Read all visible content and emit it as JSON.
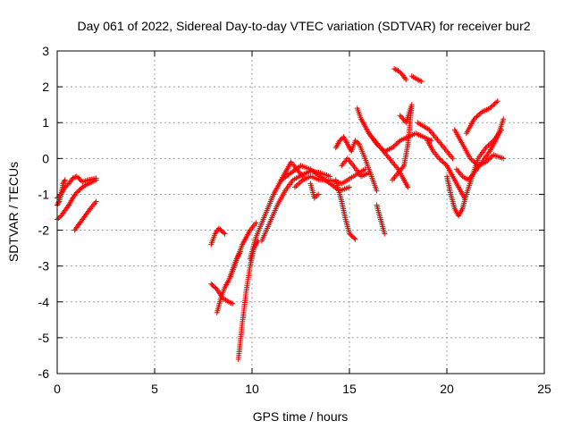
{
  "chart_data": {
    "type": "scatter",
    "title": "Day 061 of 2022, Sidereal Day-to-day VTEC variation (SDTVAR) for receiver bur2",
    "xlabel": "GPS time / hours",
    "ylabel": "SDTVAR / TECUs",
    "xlim": [
      0,
      25
    ],
    "ylim": [
      -6,
      3
    ],
    "xticks": [
      0,
      5,
      10,
      15,
      20,
      25
    ],
    "yticks": [
      -6,
      -5,
      -4,
      -3,
      -2,
      -1,
      0,
      1,
      2,
      3
    ],
    "grid": true,
    "marker": "+",
    "color": "#ff0000",
    "series": [
      {
        "values_note": "",
        "segments": [
          [
            [
              0.0,
              -1.1
            ],
            [
              0.2,
              -1.0
            ],
            [
              0.4,
              -0.8
            ],
            [
              0.6,
              -0.7
            ],
            [
              0.8,
              -0.55
            ],
            [
              1.0,
              -0.5
            ],
            [
              1.3,
              -0.65
            ],
            [
              1.6,
              -0.6
            ],
            [
              2.0,
              -0.55
            ]
          ],
          [
            [
              0.0,
              -1.7
            ],
            [
              0.2,
              -1.6
            ],
            [
              0.4,
              -1.45
            ],
            [
              0.6,
              -1.3
            ],
            [
              0.8,
              -1.1
            ],
            [
              1.0,
              -0.95
            ],
            [
              1.3,
              -0.8
            ],
            [
              1.6,
              -0.7
            ],
            [
              2.0,
              -0.6
            ]
          ],
          [
            [
              0.0,
              -1.3
            ],
            [
              0.1,
              -1.2
            ],
            [
              0.2,
              -1.0
            ],
            [
              0.3,
              -0.7
            ],
            [
              0.4,
              -0.6
            ]
          ],
          [
            [
              0.9,
              -2.0
            ],
            [
              1.1,
              -1.85
            ],
            [
              1.3,
              -1.7
            ],
            [
              1.5,
              -1.55
            ],
            [
              1.7,
              -1.4
            ],
            [
              2.0,
              -1.2
            ]
          ],
          [
            [
              7.9,
              -2.4
            ],
            [
              8.1,
              -2.1
            ],
            [
              8.3,
              -1.95
            ],
            [
              8.6,
              -2.1
            ]
          ],
          [
            [
              7.9,
              -3.5
            ],
            [
              8.2,
              -3.65
            ],
            [
              8.5,
              -3.9
            ],
            [
              8.8,
              -4.0
            ],
            [
              9.0,
              -4.05
            ]
          ],
          [
            [
              8.2,
              -4.3
            ],
            [
              8.4,
              -3.9
            ],
            [
              8.6,
              -3.6
            ],
            [
              8.8,
              -3.4
            ],
            [
              9.0,
              -3.1
            ],
            [
              9.2,
              -2.8
            ],
            [
              9.4,
              -2.6
            ]
          ],
          [
            [
              8.9,
              -3.3
            ],
            [
              9.1,
              -3.0
            ],
            [
              9.3,
              -2.7
            ],
            [
              9.5,
              -2.4
            ],
            [
              9.7,
              -2.2
            ],
            [
              9.9,
              -2.0
            ],
            [
              10.2,
              -1.8
            ]
          ],
          [
            [
              9.3,
              -5.6
            ],
            [
              9.5,
              -4.6
            ],
            [
              9.7,
              -3.7
            ],
            [
              9.9,
              -3.0
            ],
            [
              10.1,
              -2.5
            ],
            [
              10.3,
              -2.3
            ]
          ],
          [
            [
              9.9,
              -2.8
            ],
            [
              10.2,
              -2.2
            ],
            [
              10.5,
              -1.8
            ],
            [
              10.8,
              -1.4
            ],
            [
              11.1,
              -1.0
            ],
            [
              11.4,
              -0.7
            ],
            [
              11.7,
              -0.4
            ],
            [
              12.0,
              -0.1
            ],
            [
              12.3,
              -0.3
            ],
            [
              12.6,
              -0.5
            ]
          ],
          [
            [
              10.5,
              -2.3
            ],
            [
              10.9,
              -1.8
            ],
            [
              11.3,
              -1.3
            ],
            [
              11.7,
              -0.9
            ],
            [
              12.1,
              -0.6
            ],
            [
              12.6,
              -0.45
            ],
            [
              13.0,
              -0.35
            ],
            [
              13.5,
              -0.4
            ],
            [
              14.0,
              -0.5
            ]
          ],
          [
            [
              11.5,
              -0.6
            ],
            [
              12.0,
              -0.4
            ],
            [
              12.5,
              -0.2
            ],
            [
              13.0,
              -0.3
            ],
            [
              13.5,
              -0.5
            ],
            [
              14.0,
              -0.7
            ],
            [
              14.5,
              -0.9
            ],
            [
              15.0,
              -0.8
            ]
          ],
          [
            [
              12.2,
              -0.8
            ],
            [
              12.6,
              -0.6
            ],
            [
              13.0,
              -0.5
            ],
            [
              13.5,
              -0.6
            ],
            [
              14.0,
              -0.6
            ],
            [
              14.6,
              -0.7
            ],
            [
              15.2,
              -0.5
            ],
            [
              15.8,
              -0.3
            ]
          ],
          [
            [
              13.0,
              -0.7
            ],
            [
              13.2,
              -1.1
            ],
            [
              13.4,
              -1.0
            ]
          ],
          [
            [
              14.3,
              0.3
            ],
            [
              14.5,
              0.5
            ],
            [
              14.7,
              0.6
            ],
            [
              14.9,
              0.4
            ],
            [
              15.1,
              0.2
            ],
            [
              15.3,
              0.5
            ],
            [
              15.5,
              0.4
            ],
            [
              15.8,
              0.0
            ],
            [
              16.0,
              -0.3
            ],
            [
              16.2,
              -0.6
            ],
            [
              16.4,
              -0.9
            ]
          ],
          [
            [
              14.3,
              -0.6
            ],
            [
              14.6,
              -1.2
            ],
            [
              14.8,
              -1.7
            ],
            [
              15.0,
              -2.1
            ],
            [
              15.3,
              -2.25
            ]
          ],
          [
            [
              14.6,
              -0.2
            ],
            [
              14.9,
              0.0
            ],
            [
              15.2,
              -0.2
            ],
            [
              15.6,
              -0.5
            ],
            [
              16.0,
              -0.4
            ]
          ],
          [
            [
              15.4,
              1.4
            ],
            [
              15.6,
              1.1
            ],
            [
              15.8,
              0.9
            ],
            [
              16.0,
              0.7
            ],
            [
              16.3,
              0.5
            ],
            [
              16.6,
              0.3
            ],
            [
              16.9,
              0.1
            ],
            [
              17.2,
              -0.1
            ],
            [
              17.5,
              -0.3
            ],
            [
              17.8,
              -0.6
            ],
            [
              18.0,
              -0.8
            ]
          ],
          [
            [
              16.4,
              -1.3
            ],
            [
              16.6,
              -1.7
            ],
            [
              16.8,
              -2.1
            ]
          ],
          [
            [
              16.0,
              0.7
            ],
            [
              16.4,
              0.4
            ],
            [
              16.8,
              0.2
            ],
            [
              17.2,
              0.3
            ],
            [
              17.6,
              0.5
            ],
            [
              18.0,
              0.6
            ],
            [
              18.4,
              0.7
            ],
            [
              18.8,
              0.6
            ],
            [
              19.2,
              0.5
            ]
          ],
          [
            [
              17.3,
              2.5
            ],
            [
              17.5,
              2.45
            ],
            [
              17.7,
              2.35
            ],
            [
              17.9,
              2.2
            ]
          ],
          [
            [
              18.2,
              2.3
            ],
            [
              18.5,
              2.2
            ],
            [
              18.7,
              2.15
            ]
          ],
          [
            [
              17.6,
              1.2
            ],
            [
              17.9,
              1.0
            ],
            [
              18.2,
              1.5
            ],
            [
              18.0,
              0.4
            ],
            [
              17.8,
              -0.2
            ],
            [
              17.5,
              -0.4
            ],
            [
              17.2,
              -0.6
            ]
          ],
          [
            [
              18.5,
              1.0
            ],
            [
              18.8,
              0.9
            ],
            [
              19.1,
              0.8
            ],
            [
              19.4,
              0.6
            ],
            [
              19.7,
              0.4
            ],
            [
              20.0,
              0.2
            ],
            [
              20.3,
              0.0
            ]
          ],
          [
            [
              19.0,
              0.5
            ],
            [
              19.3,
              0.2
            ],
            [
              19.6,
              0.0
            ],
            [
              20.0,
              -0.2
            ],
            [
              20.3,
              -0.5
            ],
            [
              20.6,
              -0.8
            ],
            [
              20.9,
              -1.1
            ]
          ],
          [
            [
              20.0,
              -0.5
            ],
            [
              20.2,
              -1.0
            ],
            [
              20.4,
              -1.4
            ],
            [
              20.6,
              -1.6
            ],
            [
              20.8,
              -1.4
            ],
            [
              21.0,
              -1.0
            ],
            [
              21.3,
              -0.5
            ],
            [
              21.6,
              0.0
            ],
            [
              22.0,
              0.3
            ],
            [
              22.4,
              0.5
            ],
            [
              22.8,
              0.8
            ]
          ],
          [
            [
              20.5,
              -0.3
            ],
            [
              20.8,
              -0.5
            ],
            [
              21.1,
              -0.6
            ],
            [
              21.4,
              -0.4
            ],
            [
              21.8,
              -0.1
            ],
            [
              22.2,
              0.2
            ],
            [
              22.6,
              0.6
            ],
            [
              22.9,
              1.1
            ]
          ],
          [
            [
              21.0,
              0.7
            ],
            [
              21.4,
              1.1
            ],
            [
              21.8,
              1.3
            ],
            [
              22.2,
              1.4
            ],
            [
              22.6,
              1.6
            ]
          ],
          [
            [
              20.4,
              0.8
            ],
            [
              20.8,
              0.4
            ],
            [
              21.2,
              0.0
            ],
            [
              21.6,
              -0.2
            ],
            [
              22.0,
              -0.1
            ],
            [
              22.4,
              0.1
            ],
            [
              22.9,
              0.0
            ]
          ]
        ]
      }
    ]
  }
}
